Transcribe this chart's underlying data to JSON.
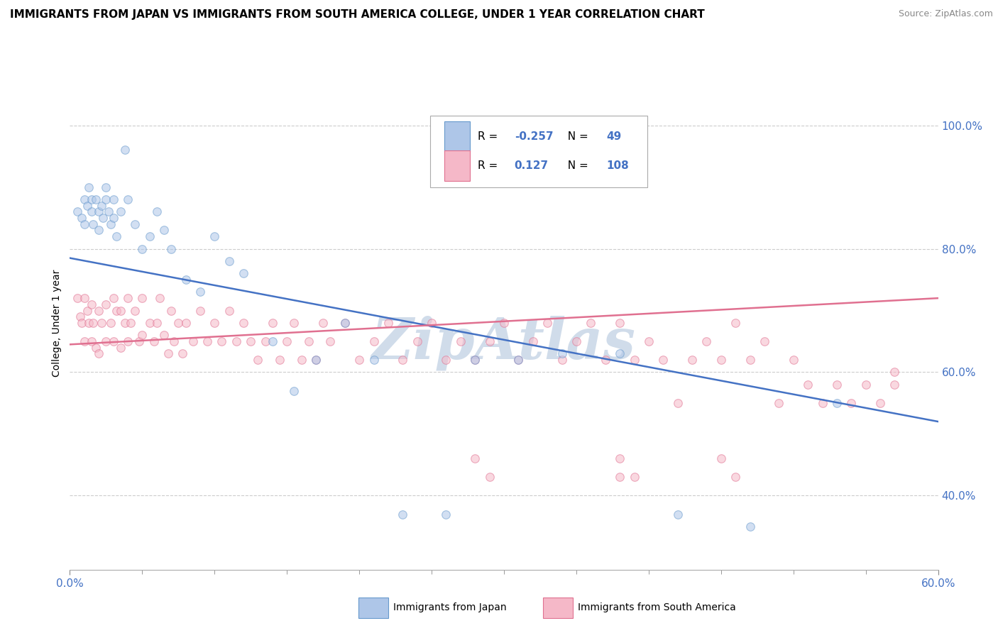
{
  "title": "IMMIGRANTS FROM JAPAN VS IMMIGRANTS FROM SOUTH AMERICA COLLEGE, UNDER 1 YEAR CORRELATION CHART",
  "source": "Source: ZipAtlas.com",
  "ylabel": "College, Under 1 year",
  "xlim": [
    0.0,
    0.6
  ],
  "ylim": [
    0.28,
    1.08
  ],
  "ytick_values": [
    0.4,
    0.6,
    0.8,
    1.0
  ],
  "ytick_labels": [
    "40.0%",
    "60.0%",
    "80.0%",
    "100.0%"
  ],
  "xtick_values": [
    0.0,
    0.6
  ],
  "xtick_labels": [
    "0.0%",
    "60.0%"
  ],
  "japan_color": "#aec6e8",
  "japan_edge_color": "#6699cc",
  "sa_color": "#f5b8c8",
  "sa_edge_color": "#e07090",
  "japan_line_color": "#4472c4",
  "sa_line_color": "#e07090",
  "text_color": "#4472c4",
  "legend_R_japan": "-0.257",
  "legend_N_japan": "49",
  "legend_R_sa": "0.127",
  "legend_N_sa": "108",
  "japan_x": [
    0.005,
    0.008,
    0.01,
    0.01,
    0.012,
    0.013,
    0.015,
    0.015,
    0.016,
    0.018,
    0.02,
    0.02,
    0.022,
    0.023,
    0.025,
    0.025,
    0.027,
    0.028,
    0.03,
    0.03,
    0.032,
    0.035,
    0.038,
    0.04,
    0.045,
    0.05,
    0.055,
    0.06,
    0.065,
    0.07,
    0.08,
    0.09,
    0.1,
    0.11,
    0.12,
    0.14,
    0.155,
    0.17,
    0.19,
    0.21,
    0.23,
    0.26,
    0.28,
    0.31,
    0.34,
    0.38,
    0.42,
    0.47,
    0.53
  ],
  "japan_y": [
    0.86,
    0.85,
    0.88,
    0.84,
    0.87,
    0.9,
    0.88,
    0.86,
    0.84,
    0.88,
    0.86,
    0.83,
    0.87,
    0.85,
    0.9,
    0.88,
    0.86,
    0.84,
    0.88,
    0.85,
    0.82,
    0.86,
    0.96,
    0.88,
    0.84,
    0.8,
    0.82,
    0.86,
    0.83,
    0.8,
    0.75,
    0.73,
    0.82,
    0.78,
    0.76,
    0.65,
    0.57,
    0.62,
    0.68,
    0.62,
    0.37,
    0.37,
    0.62,
    0.62,
    0.63,
    0.63,
    0.37,
    0.35,
    0.55
  ],
  "sa_x": [
    0.005,
    0.007,
    0.008,
    0.01,
    0.01,
    0.012,
    0.013,
    0.015,
    0.015,
    0.016,
    0.018,
    0.02,
    0.02,
    0.022,
    0.025,
    0.025,
    0.028,
    0.03,
    0.03,
    0.032,
    0.035,
    0.035,
    0.038,
    0.04,
    0.04,
    0.042,
    0.045,
    0.048,
    0.05,
    0.05,
    0.055,
    0.058,
    0.06,
    0.062,
    0.065,
    0.068,
    0.07,
    0.072,
    0.075,
    0.078,
    0.08,
    0.085,
    0.09,
    0.095,
    0.1,
    0.105,
    0.11,
    0.115,
    0.12,
    0.125,
    0.13,
    0.135,
    0.14,
    0.145,
    0.15,
    0.155,
    0.16,
    0.165,
    0.17,
    0.175,
    0.18,
    0.19,
    0.2,
    0.21,
    0.22,
    0.23,
    0.24,
    0.25,
    0.26,
    0.27,
    0.28,
    0.29,
    0.3,
    0.31,
    0.32,
    0.33,
    0.34,
    0.35,
    0.36,
    0.37,
    0.38,
    0.39,
    0.4,
    0.41,
    0.42,
    0.43,
    0.44,
    0.45,
    0.46,
    0.47,
    0.48,
    0.49,
    0.5,
    0.51,
    0.52,
    0.53,
    0.54,
    0.55,
    0.56,
    0.57,
    0.45,
    0.46,
    0.38,
    0.39,
    0.28,
    0.29,
    0.38,
    0.57
  ],
  "sa_y": [
    0.72,
    0.69,
    0.68,
    0.72,
    0.65,
    0.7,
    0.68,
    0.71,
    0.65,
    0.68,
    0.64,
    0.7,
    0.63,
    0.68,
    0.71,
    0.65,
    0.68,
    0.72,
    0.65,
    0.7,
    0.7,
    0.64,
    0.68,
    0.72,
    0.65,
    0.68,
    0.7,
    0.65,
    0.72,
    0.66,
    0.68,
    0.65,
    0.68,
    0.72,
    0.66,
    0.63,
    0.7,
    0.65,
    0.68,
    0.63,
    0.68,
    0.65,
    0.7,
    0.65,
    0.68,
    0.65,
    0.7,
    0.65,
    0.68,
    0.65,
    0.62,
    0.65,
    0.68,
    0.62,
    0.65,
    0.68,
    0.62,
    0.65,
    0.62,
    0.68,
    0.65,
    0.68,
    0.62,
    0.65,
    0.68,
    0.62,
    0.65,
    0.68,
    0.62,
    0.65,
    0.62,
    0.65,
    0.68,
    0.62,
    0.65,
    0.68,
    0.62,
    0.65,
    0.68,
    0.62,
    0.68,
    0.62,
    0.65,
    0.62,
    0.55,
    0.62,
    0.65,
    0.62,
    0.68,
    0.62,
    0.65,
    0.55,
    0.62,
    0.58,
    0.55,
    0.58,
    0.55,
    0.58,
    0.55,
    0.58,
    0.46,
    0.43,
    0.43,
    0.43,
    0.46,
    0.43,
    0.46,
    0.6
  ],
  "japan_trend_x": [
    0.0,
    0.6
  ],
  "japan_trend_y": [
    0.785,
    0.52
  ],
  "sa_trend_x": [
    0.0,
    0.6
  ],
  "sa_trend_y": [
    0.645,
    0.72
  ],
  "watermark": "ZipAtlas",
  "watermark_color": "#d0dcea",
  "grid_color": "#cccccc",
  "grid_style": "--",
  "bg_color": "#ffffff",
  "marker_size": 70,
  "marker_alpha": 0.55,
  "line_width": 1.8
}
